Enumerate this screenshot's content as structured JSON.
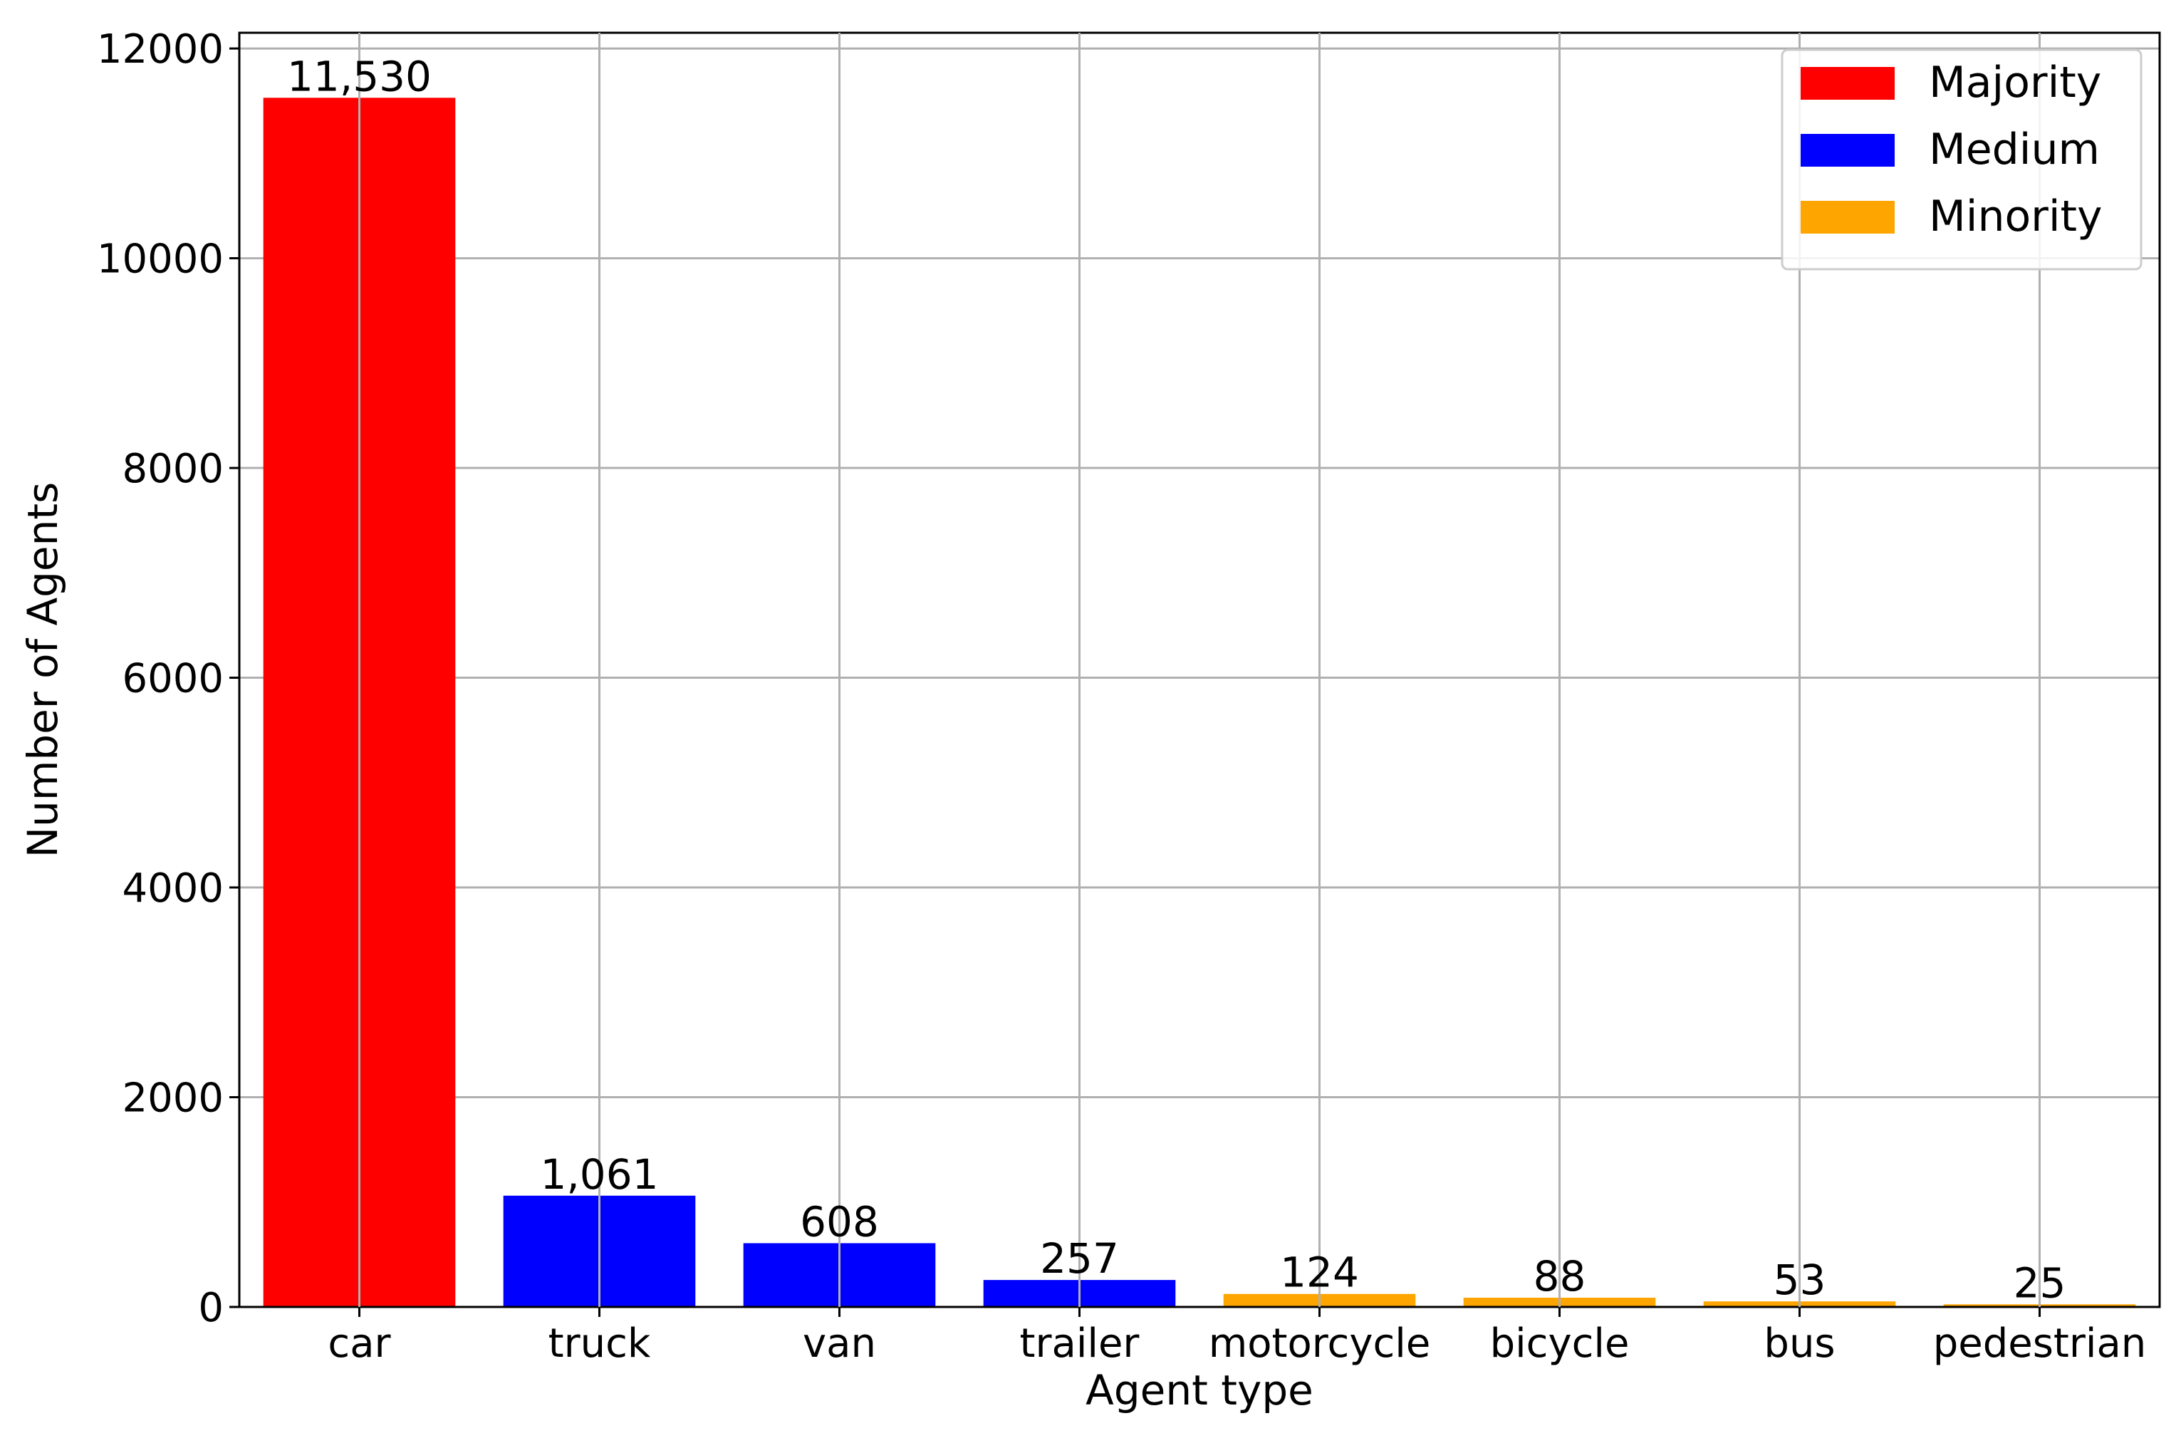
{
  "chart_data": {
    "type": "bar",
    "xlabel": "Agent type",
    "ylabel": "Number of Agents",
    "categories": [
      "car",
      "truck",
      "van",
      "trailer",
      "motorcycle",
      "bicycle",
      "bus",
      "pedestrian"
    ],
    "values": [
      11530,
      1061,
      608,
      257,
      124,
      88,
      53,
      25
    ],
    "value_labels": [
      "11,530",
      "1,061",
      "608",
      "257",
      "124",
      "88",
      "53",
      "25"
    ],
    "groups": [
      "Majority",
      "Medium",
      "Medium",
      "Medium",
      "Minority",
      "Minority",
      "Minority",
      "Minority"
    ],
    "legend": [
      {
        "name": "Majority",
        "color": "#ff0000"
      },
      {
        "name": "Medium",
        "color": "#0000ff"
      },
      {
        "name": "Minority",
        "color": "#ffa500"
      }
    ],
    "legend_position": "top-right",
    "yticks": [
      0,
      2000,
      4000,
      6000,
      8000,
      10000,
      12000
    ],
    "ylim": [
      0,
      12150
    ],
    "grid": true
  }
}
